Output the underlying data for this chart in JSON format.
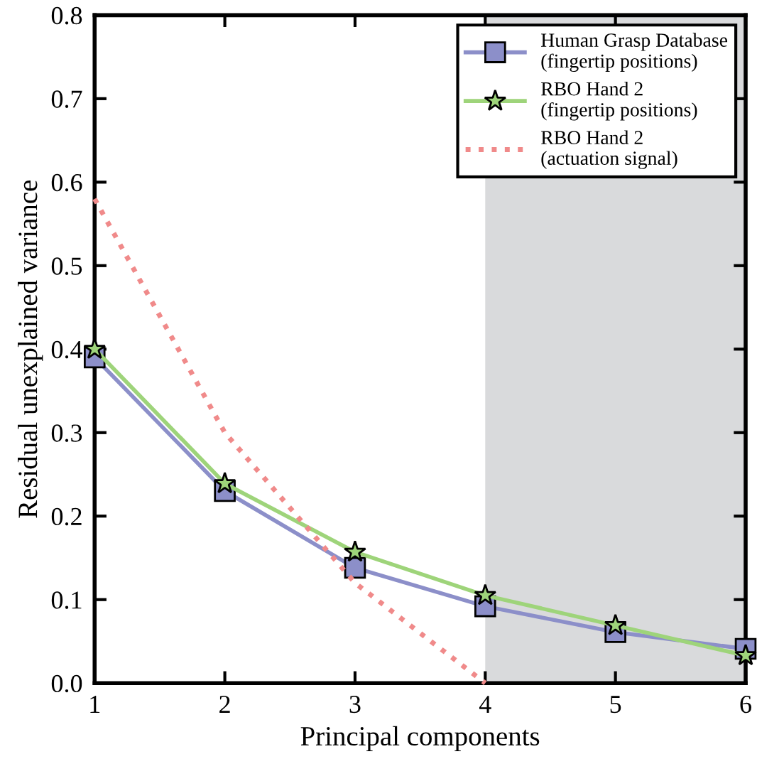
{
  "chart_data": {
    "type": "line",
    "xlabel": "Principal components",
    "ylabel": "Residual unexplained variance",
    "x": [
      1,
      2,
      3,
      4,
      5,
      6
    ],
    "series": [
      {
        "name": "Human Grasp Database\n(fingertip positions)",
        "color": "#8c8fc9",
        "marker": "square",
        "line_style": "solid",
        "values": [
          0.39,
          0.23,
          0.138,
          0.092,
          0.061,
          0.041
        ]
      },
      {
        "name": "RBO Hand 2\n(fingertip positions)",
        "color": "#9ed47a",
        "marker": "star",
        "line_style": "solid",
        "values": [
          0.4,
          0.239,
          0.157,
          0.105,
          0.069,
          0.033
        ]
      },
      {
        "name": "RBO Hand 2\n(actuation signal)",
        "color": "#f08a8a",
        "marker": "none",
        "line_style": "dotted",
        "x": [
          1,
          2,
          3,
          4
        ],
        "values": [
          0.58,
          0.3,
          0.12,
          0.0
        ]
      }
    ],
    "xlim": [
      1,
      6
    ],
    "xticks": [
      1,
      2,
      3,
      4,
      5,
      6
    ],
    "ylim": [
      0,
      0.8
    ],
    "yticks": [
      {
        "value": 0,
        "label": "0.0"
      },
      0.1,
      0.2,
      0.3,
      0.4,
      0.5,
      0.6,
      0.7,
      0.8
    ],
    "bands": [
      {
        "axis": "x",
        "from": 4,
        "to": 6,
        "color": "#d9dadc"
      }
    ],
    "legend": "top right",
    "grid": false
  }
}
